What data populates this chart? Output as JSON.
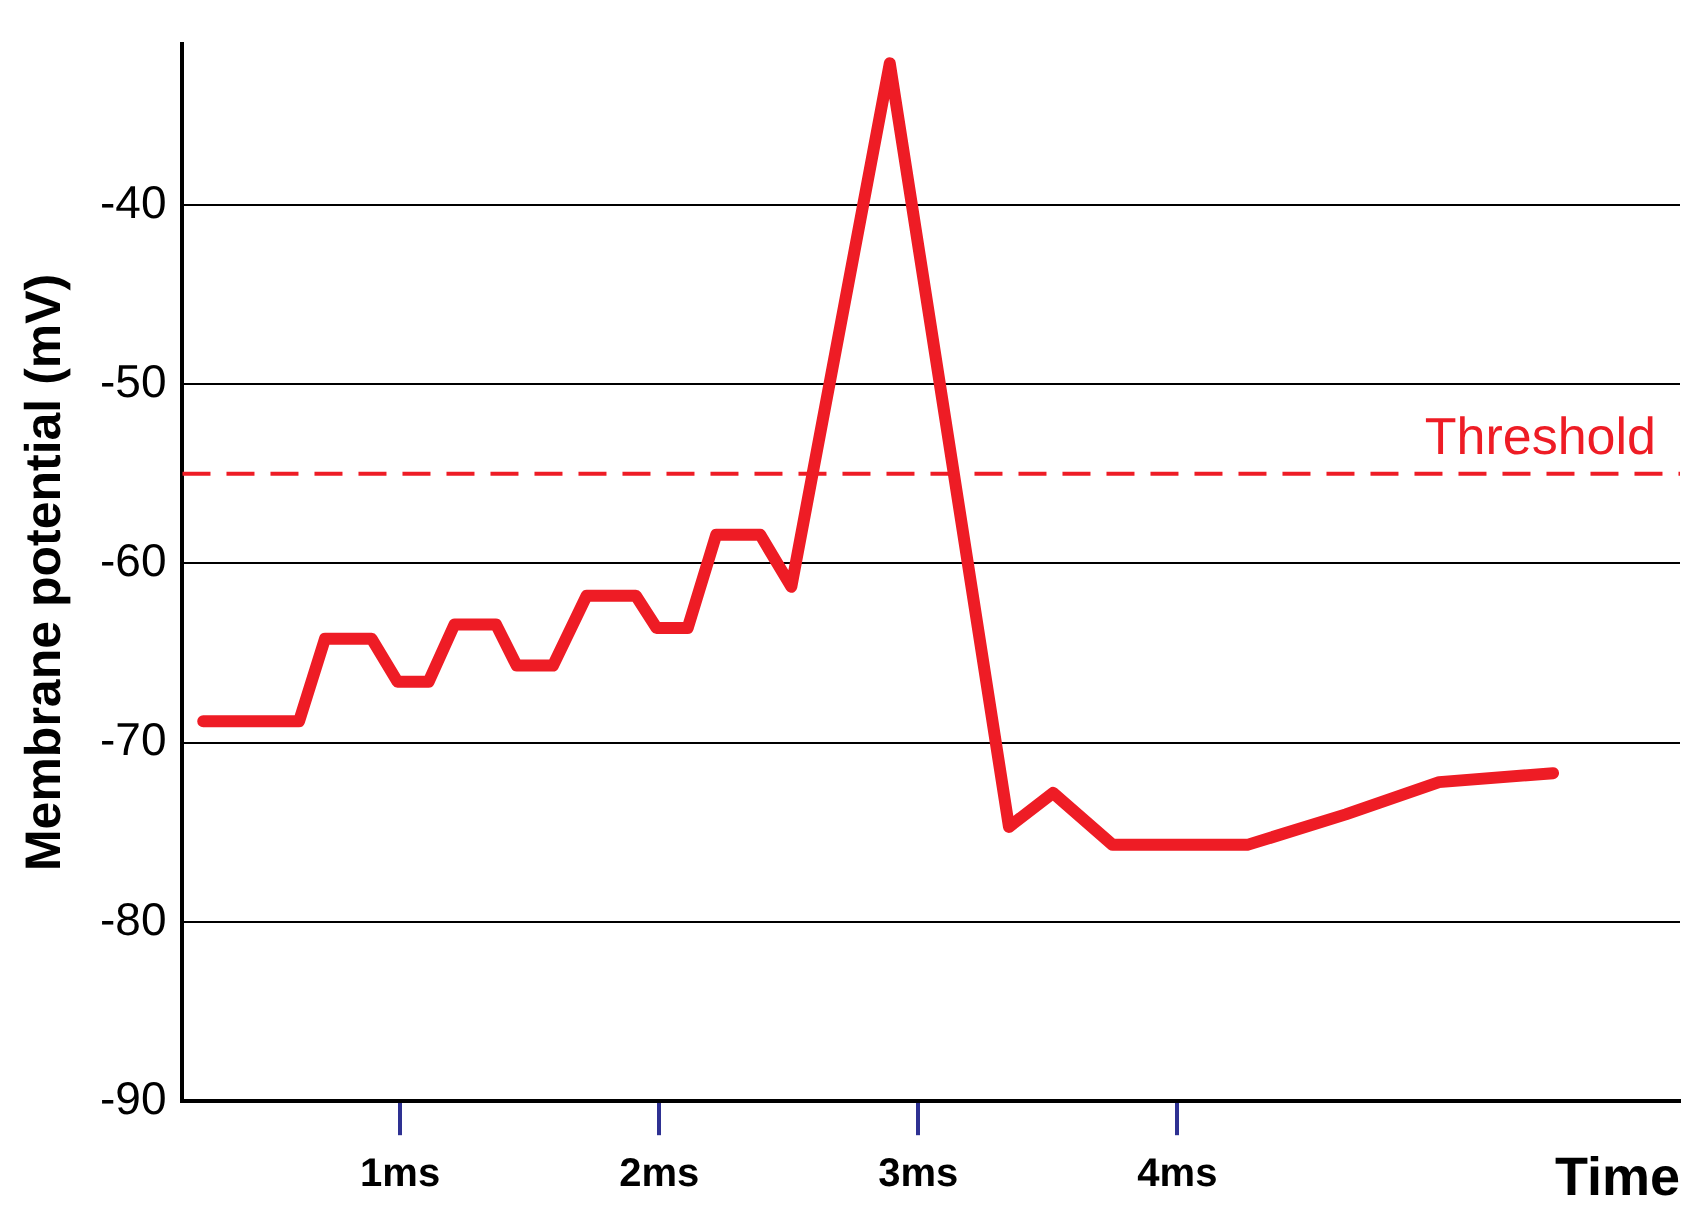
{
  "chart_data": {
    "type": "line",
    "xlabel": "Time",
    "ylabel": "Membrane potential (mV)",
    "color": "#ee1c25",
    "x": [
      0.24,
      0.61,
      0.71,
      0.89,
      0.99,
      1.11,
      1.21,
      1.37,
      1.45,
      1.59,
      1.72,
      1.91,
      1.99,
      2.11,
      2.22,
      2.39,
      2.51,
      2.89,
      3.35,
      3.52,
      3.75,
      4.0,
      4.27,
      4.65,
      5.01,
      5.45
    ],
    "values": [
      -68.8,
      -68.8,
      -64.2,
      -64.2,
      -66.6,
      -66.6,
      -63.4,
      -63.4,
      -65.7,
      -65.7,
      -61.8,
      -61.8,
      -63.6,
      -63.6,
      -58.4,
      -58.4,
      -61.3,
      -32.1,
      -74.7,
      -72.8,
      -75.7,
      -75.7,
      -75.7,
      -74.0,
      -72.2,
      -71.7
    ],
    "xlim": [
      0.16,
      5.94
    ],
    "xticks": [
      {
        "value": 1,
        "label": "1ms"
      },
      {
        "value": 2,
        "label": "2ms"
      },
      {
        "value": 3,
        "label": "3ms"
      },
      {
        "value": 4,
        "label": "4ms"
      }
    ],
    "ylim": [
      -90,
      -31
    ],
    "yticks": [
      -90,
      -80,
      -70,
      -60,
      -50,
      -40
    ],
    "grid": "y",
    "legend": false,
    "marker": "none",
    "line_style": "solid",
    "ref_lines": [
      {
        "axis": "y",
        "value": -55,
        "label": "Threshold",
        "color": "#ee1c25",
        "line_style": "dashed"
      }
    ]
  }
}
